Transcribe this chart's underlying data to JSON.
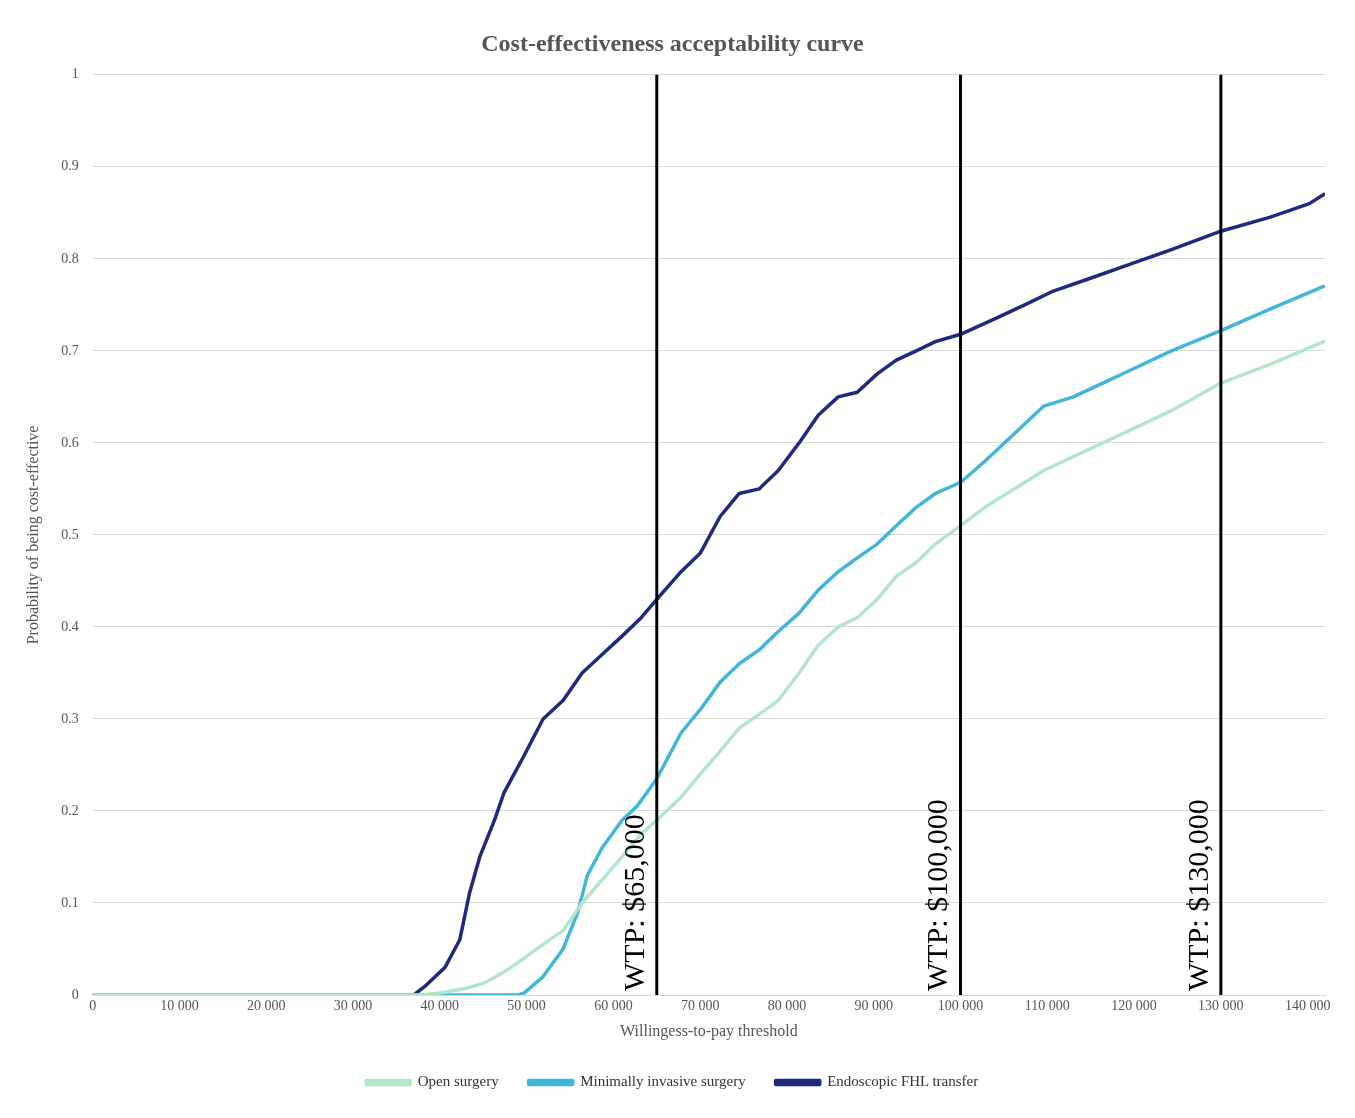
{
  "chart_data": {
    "type": "line",
    "title": "Cost-effectiveness acceptability curve",
    "xlabel": "Willingess-to-pay threshold",
    "ylabel": "Probability of being cost-effective",
    "xlim": [
      0,
      142000
    ],
    "xticks": [
      0,
      {
        "value": 10000,
        "label": "10 000"
      },
      {
        "value": 20000,
        "label": "20 000"
      },
      {
        "value": 30000,
        "label": "30 000"
      },
      {
        "value": 40000,
        "label": "40 000"
      },
      {
        "value": 50000,
        "label": "50 000"
      },
      {
        "value": 60000,
        "label": "60 000"
      },
      {
        "value": 70000,
        "label": "70 000"
      },
      {
        "value": 80000,
        "label": "80 000"
      },
      {
        "value": 90000,
        "label": "90 000"
      },
      {
        "value": 100000,
        "label": "100 000"
      },
      {
        "value": 110000,
        "label": "110 000"
      },
      {
        "value": 120000,
        "label": "120 000"
      },
      {
        "value": 130000,
        "label": "130 000"
      },
      {
        "value": 140000,
        "label": "140 000"
      }
    ],
    "ylim": [
      0,
      1
    ],
    "yticks": [
      0,
      0.1,
      0.2,
      0.3,
      0.4,
      0.5,
      0.6,
      0.7,
      0.8,
      0.9,
      1
    ],
    "grid": "y",
    "legend": "bottom",
    "marker": "none",
    "line_style": "solid",
    "series": [
      {
        "name": "Open surgery",
        "color": "#b3e6c8",
        "x": [
          0,
          38000,
          40600,
          42900,
          45100,
          47400,
          49700,
          51900,
          54200,
          56400,
          58700,
          61000,
          63200,
          65000,
          67800,
          70000,
          72300,
          74500,
          76800,
          79000,
          81400,
          83600,
          85900,
          88100,
          90400,
          92600,
          94900,
          97100,
          100000,
          102800,
          106200,
          109600,
          113000,
          116400,
          119800,
          124300,
          130000,
          135600,
          141850
        ],
        "values": [
          0,
          0,
          0.003,
          0.007,
          0.013,
          0.025,
          0.04,
          0.055,
          0.07,
          0.1,
          0.125,
          0.15,
          0.175,
          0.19,
          0.215,
          0.24,
          0.265,
          0.29,
          0.305,
          0.32,
          0.35,
          0.38,
          0.4,
          0.41,
          0.43,
          0.455,
          0.47,
          0.49,
          0.51,
          0.53,
          0.55,
          0.57,
          0.585,
          0.6,
          0.615,
          0.635,
          0.665,
          0.685,
          0.71
        ]
      },
      {
        "name": "Minimally invasive surgery",
        "color": "#41b6d9",
        "x": [
          0,
          49000,
          49700,
          51900,
          54200,
          55900,
          57000,
          58700,
          61000,
          62700,
          65000,
          67800,
          70000,
          72300,
          74500,
          76800,
          79000,
          81400,
          83600,
          85900,
          88100,
          90400,
          92600,
          94900,
          97100,
          100000,
          102800,
          106200,
          109600,
          113000,
          116400,
          119800,
          124300,
          130000,
          135600,
          141850
        ],
        "values": [
          0,
          0,
          0.002,
          0.02,
          0.05,
          0.09,
          0.13,
          0.16,
          0.19,
          0.205,
          0.235,
          0.285,
          0.31,
          0.34,
          0.36,
          0.375,
          0.395,
          0.415,
          0.44,
          0.46,
          0.475,
          0.49,
          0.51,
          0.53,
          0.545,
          0.557,
          0.58,
          0.61,
          0.64,
          0.65,
          0.665,
          0.68,
          0.7,
          0.722,
          0.745,
          0.77
        ]
      },
      {
        "name": "Endoscopic FHL transfer",
        "color": "#1f2a7d",
        "x": [
          0,
          37000,
          38350,
          40600,
          42300,
          43400,
          44600,
          46300,
          47400,
          49700,
          51900,
          54200,
          56400,
          58700,
          61000,
          63200,
          65000,
          67800,
          70000,
          72300,
          74500,
          76800,
          79000,
          81400,
          83600,
          85900,
          88100,
          90400,
          92600,
          94900,
          97100,
          100000,
          104000,
          107400,
          110700,
          115300,
          119800,
          124300,
          130000,
          135600,
          140200,
          141850
        ],
        "values": [
          0,
          0,
          0.01,
          0.03,
          0.06,
          0.11,
          0.15,
          0.19,
          0.22,
          0.26,
          0.3,
          0.32,
          0.35,
          0.37,
          0.39,
          0.41,
          0.43,
          0.46,
          0.48,
          0.52,
          0.545,
          0.55,
          0.57,
          0.6,
          0.63,
          0.65,
          0.655,
          0.675,
          0.69,
          0.7,
          0.71,
          0.718,
          0.735,
          0.75,
          0.765,
          0.78,
          0.795,
          0.81,
          0.83,
          0.845,
          0.86,
          0.87
        ]
      }
    ],
    "ref_lines": [
      {
        "axis": "x",
        "value": 65000,
        "label": "WTP: $65,000",
        "color": "#000000"
      },
      {
        "axis": "x",
        "value": 100000,
        "label": "WTP: $100,000",
        "color": "#000000"
      },
      {
        "axis": "x",
        "value": 130000,
        "label": "WTP: $130,000",
        "color": "#000000"
      }
    ]
  }
}
